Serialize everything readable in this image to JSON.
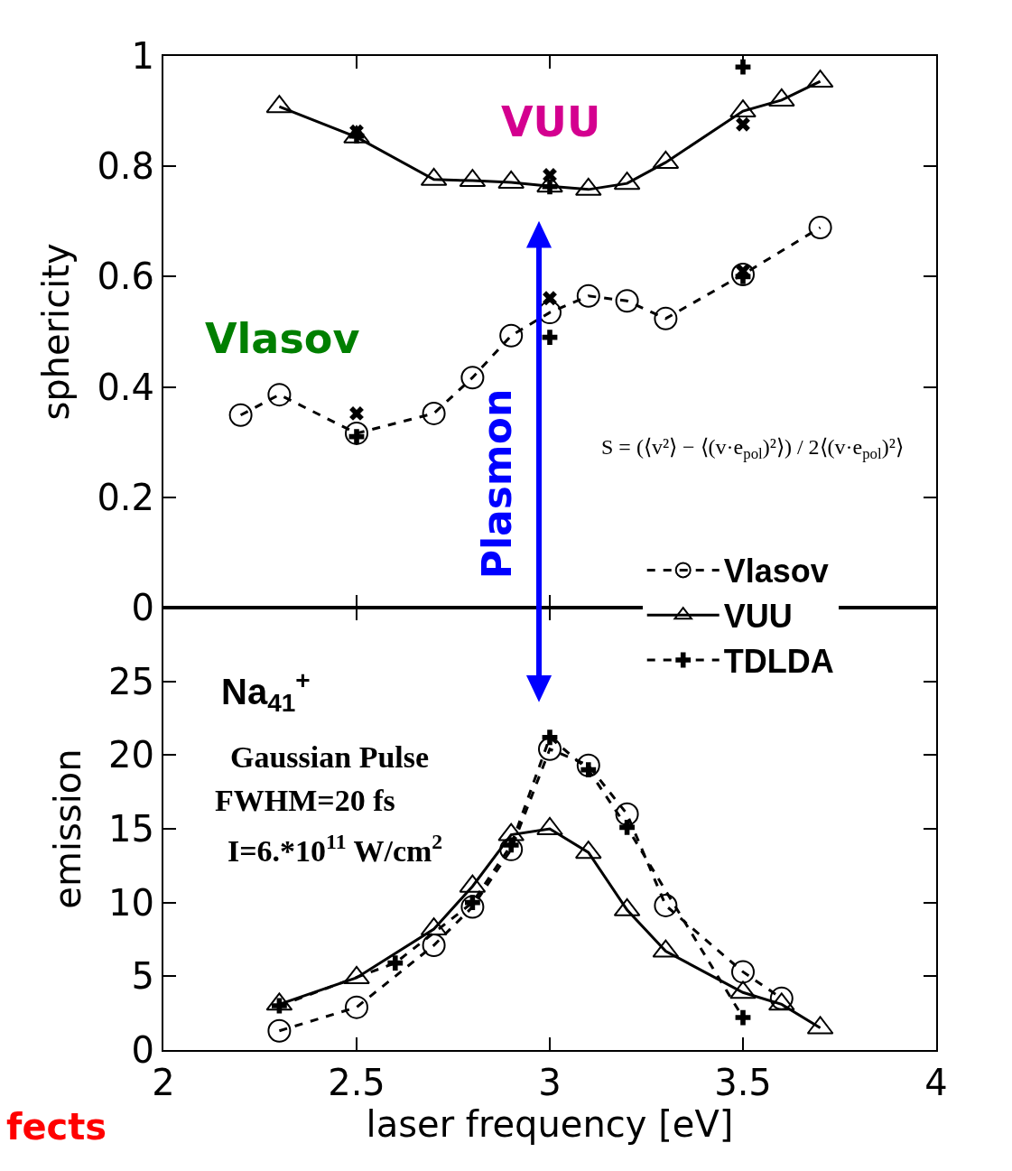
{
  "chart_data": [
    {
      "type": "line",
      "ylabel": "sphericity",
      "xlim": [
        2,
        4
      ],
      "xticks": [
        2,
        2.5,
        3,
        3.5,
        4
      ],
      "ylim": [
        0,
        1
      ],
      "yticks": [
        0,
        0.2,
        0.4,
        0.6,
        0.8,
        1
      ],
      "tick_labels": "y",
      "series": [
        {
          "color": "#000000",
          "marker": "triangle",
          "line_style": "solid",
          "x": [
            2.3,
            2.5,
            2.7,
            2.8,
            2.9,
            3.0,
            3.1,
            3.2,
            3.3,
            3.5,
            3.6,
            3.7
          ],
          "values": [
            0.908,
            0.853,
            0.776,
            0.774,
            0.771,
            0.764,
            0.758,
            0.769,
            0.807,
            0.9,
            0.92,
            0.954
          ]
        },
        {
          "color": "#000000",
          "marker": "circle",
          "line_style": "dashed",
          "x": [
            2.2,
            2.3,
            2.5,
            2.7,
            2.8,
            2.9,
            3.0,
            3.1,
            3.2,
            3.3,
            3.5,
            3.7
          ],
          "values": [
            0.349,
            0.386,
            0.316,
            0.352,
            0.417,
            0.493,
            0.535,
            0.565,
            0.556,
            0.524,
            0.604,
            0.689
          ]
        },
        {
          "type": "scatter",
          "color": "#000000",
          "marker": "x",
          "x": [
            2.5,
            2.5,
            3.0,
            3.0,
            3.5,
            3.5
          ],
          "values": [
            0.863,
            0.352,
            0.784,
            0.561,
            0.876,
            0.61
          ]
        },
        {
          "type": "scatter",
          "color": "#000000",
          "marker": "cross",
          "x": [
            2.5,
            2.5,
            3.0,
            3.0,
            3.5,
            3.5
          ],
          "values": [
            0.855,
            0.31,
            0.763,
            0.49,
            0.98,
            0.6
          ]
        }
      ],
      "annotations": [
        "VUU",
        "Vlasov",
        "Plasmon",
        "S = (⟨v²⟩ − ⟨(v·e$_{pol}$)²⟩) / 2⟨(v·e$_{pol}$)²⟩"
      ]
    },
    {
      "type": "line",
      "xlabel": "laser frequency [eV]",
      "ylabel": "emission",
      "xlim": [
        2,
        4
      ],
      "xticks": [
        2,
        2.5,
        3,
        3.5,
        4
      ],
      "ylim": [
        0,
        30
      ],
      "yticks": [
        0,
        5,
        10,
        15,
        20,
        25
      ],
      "legend": "right",
      "series": [
        {
          "name": "Vlasov",
          "color": "#000000",
          "marker": "circle",
          "line_style": "dashed",
          "x": [
            2.3,
            2.5,
            2.7,
            2.8,
            2.9,
            3.0,
            3.1,
            3.2,
            3.3,
            3.5,
            3.6
          ],
          "values": [
            1.3,
            2.9,
            7.1,
            9.7,
            13.6,
            20.4,
            19.3,
            16.0,
            9.8,
            5.3,
            3.5
          ]
        },
        {
          "name": "VUU",
          "color": "#000000",
          "marker": "triangle",
          "line_style": "solid",
          "x": [
            2.3,
            2.5,
            2.7,
            2.8,
            2.9,
            3.0,
            3.1,
            3.2,
            3.3,
            3.5,
            3.6,
            3.7
          ],
          "values": [
            3.1,
            4.9,
            8.2,
            11.1,
            14.6,
            15.0,
            13.4,
            9.5,
            6.7,
            3.9,
            3.1,
            1.5
          ]
        },
        {
          "name": "TDLDA",
          "color": "#000000",
          "marker": "cross",
          "line_style": "dashed",
          "x": [
            2.3,
            2.6,
            2.8,
            2.9,
            3.0,
            3.1,
            3.2,
            3.5
          ],
          "values": [
            3.0,
            5.9,
            10.0,
            13.9,
            21.2,
            19.0,
            15.1,
            2.2
          ]
        }
      ],
      "annotations": [
        "Na$_{41}$$^{+}$",
        "Gaussian Pulse",
        "FWHM=20 fs",
        "I=6.*10$^{11}$ W/cm$^{2}$",
        "fects"
      ]
    }
  ]
}
